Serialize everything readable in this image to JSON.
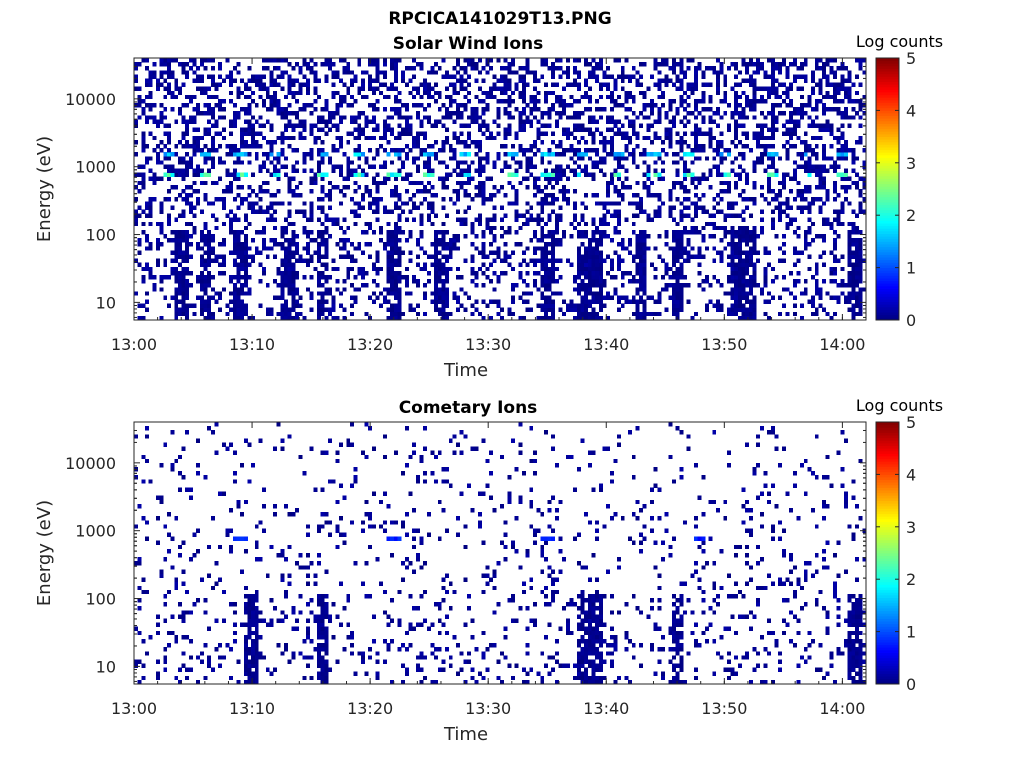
{
  "figure": {
    "title": "RPCICA141029T13.PNG"
  },
  "colors": {
    "background": "#ffffff",
    "axis": "#262626",
    "data_low": "#000080",
    "colormap": [
      "#00007f",
      "#0000ff",
      "#007fff",
      "#00ffff",
      "#7fff7f",
      "#ffff00",
      "#ff7f00",
      "#ff0000",
      "#7f0000"
    ]
  },
  "chart_data": [
    {
      "type": "heatmap",
      "title": "Solar Wind Ions",
      "xlabel": "Time",
      "ylabel": "Energy (eV)",
      "x_ticks": [
        "13:00",
        "13:10",
        "13:20",
        "13:30",
        "13:40",
        "13:50",
        "14:00"
      ],
      "x_range": [
        "13:00",
        "14:02"
      ],
      "y_scale": "log",
      "y_ticks": [
        10,
        100,
        1000,
        10000
      ],
      "y_tick_labels": [
        "10",
        "100",
        "1000",
        "10000"
      ],
      "ylim": [
        5.5,
        40000
      ],
      "colorbar": {
        "label": "Log counts",
        "range": [
          0,
          5
        ],
        "ticks": [
          "0",
          "1",
          "2",
          "3",
          "4",
          "5"
        ],
        "colormap": "jet"
      },
      "peak_energy_eV": [
        1500,
        750
      ],
      "peak_log_counts": [
        1.8,
        2.3
      ],
      "peak_times": [
        "13:03",
        "13:06",
        "13:09",
        "13:12",
        "13:16",
        "13:19",
        "13:22",
        "13:25",
        "13:28",
        "13:32",
        "13:35",
        "13:38",
        "13:41",
        "13:44",
        "13:47",
        "13:50",
        "13:54",
        "13:57",
        "14:00"
      ],
      "background_log_counts": 0.2,
      "background_occupancy_high_energy": 0.45,
      "background_occupancy_low_energy": 0.22,
      "low_energy_dense_times": [
        "13:04",
        "13:06",
        "13:09",
        "13:13",
        "13:16",
        "13:22",
        "13:26",
        "13:35",
        "13:38",
        "13:39",
        "13:43",
        "13:46",
        "13:51",
        "13:52",
        "14:01"
      ]
    },
    {
      "type": "heatmap",
      "title": "Cometary Ions",
      "xlabel": "Time",
      "ylabel": "Energy (eV)",
      "x_ticks": [
        "13:00",
        "13:10",
        "13:20",
        "13:30",
        "13:40",
        "13:50",
        "14:00"
      ],
      "x_range": [
        "13:00",
        "14:02"
      ],
      "y_scale": "log",
      "y_ticks": [
        10,
        100,
        1000,
        10000
      ],
      "y_tick_labels": [
        "10",
        "100",
        "1000",
        "10000"
      ],
      "ylim": [
        5.5,
        40000
      ],
      "colorbar": {
        "label": "Log counts",
        "range": [
          0,
          5
        ],
        "ticks": [
          "0",
          "1",
          "2",
          "3",
          "4",
          "5"
        ],
        "colormap": "jet"
      },
      "peak_energy_eV": [
        750
      ],
      "peak_log_counts": [
        0.9
      ],
      "peak_times": [
        "13:09",
        "13:22",
        "13:35",
        "13:48"
      ],
      "background_log_counts": 0.2,
      "background_occupancy_high_energy": 0.05,
      "background_occupancy_low_energy": 0.14,
      "low_energy_dense_times": [
        "13:10",
        "13:16",
        "13:38",
        "13:39",
        "13:46",
        "14:01"
      ]
    }
  ]
}
